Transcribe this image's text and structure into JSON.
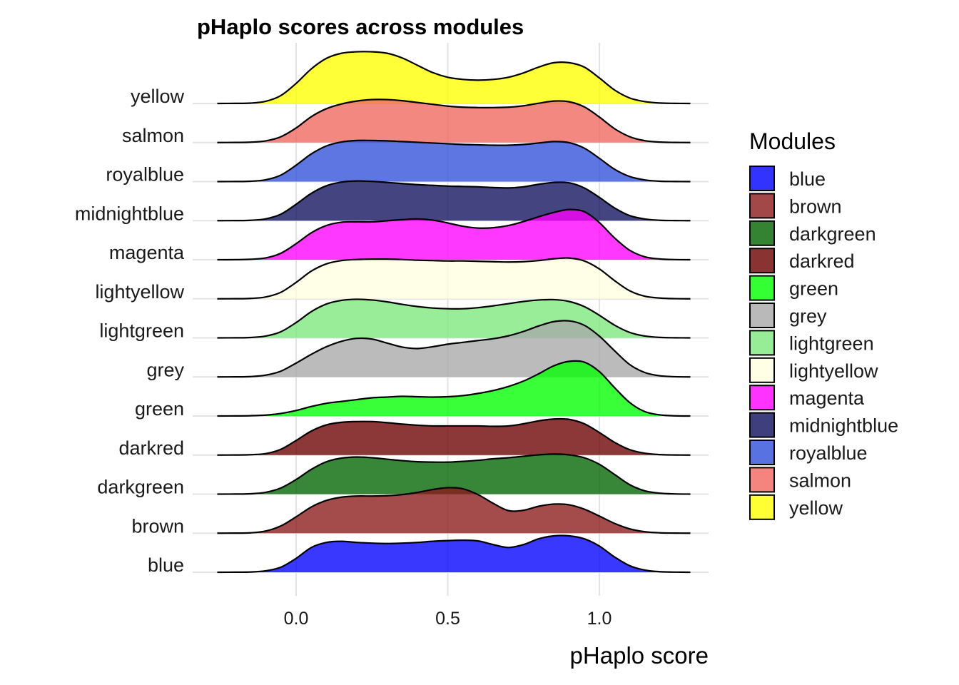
{
  "chart_data": {
    "type": "ridgeline",
    "title": "pHaplo scores across modules",
    "xlabel": "pHaplo score",
    "ylabel": "",
    "xlim": [
      -0.26,
      1.3
    ],
    "xticks": [
      0.0,
      0.5,
      1.0
    ],
    "xtick_labels": [
      "0.0",
      "0.5",
      "1.0"
    ],
    "grid": true,
    "legend": {
      "title": "Modules",
      "position": "right"
    },
    "categories": [
      "blue",
      "brown",
      "darkgreen",
      "darkred",
      "green",
      "grey",
      "lightgreen",
      "lightyellow",
      "magenta",
      "midnightblue",
      "royalblue",
      "salmon",
      "yellow"
    ],
    "x": [
      -0.26,
      -0.2,
      -0.15,
      -0.1,
      -0.05,
      0.0,
      0.05,
      0.1,
      0.15,
      0.2,
      0.25,
      0.3,
      0.35,
      0.4,
      0.45,
      0.5,
      0.55,
      0.6,
      0.65,
      0.7,
      0.75,
      0.8,
      0.85,
      0.9,
      0.95,
      1.0,
      1.05,
      1.1,
      1.15,
      1.2,
      1.25,
      1.3
    ],
    "series": [
      {
        "name": "blue",
        "color": "#0000FF",
        "values": [
          0,
          0.002,
          0.008,
          0.04,
          0.14,
          0.38,
          0.68,
          0.82,
          0.85,
          0.82,
          0.8,
          0.79,
          0.8,
          0.82,
          0.85,
          0.87,
          0.88,
          0.86,
          0.76,
          0.68,
          0.76,
          0.92,
          1.0,
          1.0,
          0.92,
          0.72,
          0.42,
          0.18,
          0.06,
          0.015,
          0.004,
          0
        ]
      },
      {
        "name": "brown",
        "color": "#8B1A1A",
        "values": [
          0,
          0.002,
          0.01,
          0.06,
          0.2,
          0.45,
          0.72,
          0.9,
          0.99,
          1.02,
          1.02,
          1.03,
          1.06,
          1.12,
          1.2,
          1.25,
          1.22,
          1.06,
          0.82,
          0.62,
          0.63,
          0.74,
          0.8,
          0.78,
          0.66,
          0.47,
          0.27,
          0.12,
          0.04,
          0.01,
          0.003,
          0
        ]
      },
      {
        "name": "darkgreen",
        "color": "#006400",
        "values": [
          0,
          0.002,
          0.01,
          0.05,
          0.17,
          0.4,
          0.68,
          0.89,
          0.99,
          1.02,
          1.0,
          0.96,
          0.92,
          0.89,
          0.88,
          0.88,
          0.9,
          0.93,
          0.97,
          1.0,
          1.04,
          1.08,
          1.1,
          1.08,
          1.0,
          0.82,
          0.54,
          0.26,
          0.09,
          0.025,
          0.006,
          0
        ]
      },
      {
        "name": "darkred",
        "color": "#6B0000",
        "values": [
          0,
          0.002,
          0.01,
          0.04,
          0.16,
          0.4,
          0.66,
          0.83,
          0.9,
          0.92,
          0.92,
          0.89,
          0.85,
          0.82,
          0.8,
          0.8,
          0.8,
          0.8,
          0.79,
          0.8,
          0.86,
          0.94,
          0.99,
          0.98,
          0.86,
          0.62,
          0.35,
          0.15,
          0.05,
          0.012,
          0.003,
          0
        ]
      },
      {
        "name": "green",
        "color": "#00FF00",
        "values": [
          0,
          0.002,
          0.008,
          0.025,
          0.07,
          0.15,
          0.26,
          0.35,
          0.4,
          0.45,
          0.5,
          0.52,
          0.54,
          0.53,
          0.52,
          0.53,
          0.56,
          0.62,
          0.7,
          0.81,
          0.96,
          1.16,
          1.38,
          1.5,
          1.48,
          1.22,
          0.78,
          0.37,
          0.12,
          0.03,
          0.005,
          0
        ]
      },
      {
        "name": "grey",
        "color": "#A8A8A8",
        "values": [
          0,
          0.002,
          0.01,
          0.05,
          0.16,
          0.38,
          0.62,
          0.83,
          0.98,
          1.06,
          1.04,
          0.93,
          0.82,
          0.78,
          0.83,
          0.9,
          0.95,
          1.0,
          1.05,
          1.13,
          1.25,
          1.4,
          1.52,
          1.54,
          1.42,
          1.12,
          0.72,
          0.34,
          0.12,
          0.03,
          0.006,
          0
        ]
      },
      {
        "name": "lightgreen",
        "color": "#7CE87C",
        "values": [
          0,
          0.002,
          0.01,
          0.05,
          0.17,
          0.42,
          0.72,
          0.93,
          1.03,
          1.06,
          1.04,
          0.99,
          0.92,
          0.86,
          0.82,
          0.8,
          0.8,
          0.83,
          0.88,
          0.94,
          1.0,
          1.04,
          1.05,
          1.0,
          0.86,
          0.62,
          0.35,
          0.15,
          0.05,
          0.012,
          0.003,
          0
        ]
      },
      {
        "name": "lightyellow",
        "color": "#FFFFE0",
        "values": [
          0,
          0.002,
          0.01,
          0.05,
          0.18,
          0.45,
          0.76,
          0.96,
          1.05,
          1.08,
          1.09,
          1.09,
          1.08,
          1.06,
          1.05,
          1.04,
          1.04,
          1.03,
          1.02,
          1.01,
          1.02,
          1.05,
          1.1,
          1.12,
          1.04,
          0.82,
          0.5,
          0.22,
          0.07,
          0.02,
          0.004,
          0
        ]
      },
      {
        "name": "magenta",
        "color": "#FF00FF",
        "values": [
          0,
          0.002,
          0.012,
          0.05,
          0.18,
          0.44,
          0.74,
          0.94,
          1.03,
          1.04,
          1.04,
          1.07,
          1.1,
          1.12,
          1.09,
          1.01,
          0.92,
          0.87,
          0.88,
          0.94,
          1.05,
          1.18,
          1.3,
          1.38,
          1.32,
          1.02,
          0.6,
          0.26,
          0.08,
          0.02,
          0.004,
          0
        ]
      },
      {
        "name": "midnightblue",
        "color": "#0F0F5E",
        "values": [
          0,
          0.002,
          0.01,
          0.05,
          0.18,
          0.45,
          0.75,
          0.96,
          1.06,
          1.09,
          1.08,
          1.05,
          1.02,
          0.99,
          0.97,
          0.95,
          0.94,
          0.93,
          0.91,
          0.9,
          0.93,
          1.0,
          1.05,
          1.04,
          0.9,
          0.64,
          0.35,
          0.14,
          0.045,
          0.01,
          0.003,
          0
        ]
      },
      {
        "name": "royalblue",
        "color": "#2F4FDA",
        "values": [
          0,
          0.002,
          0.01,
          0.05,
          0.18,
          0.45,
          0.76,
          0.98,
          1.09,
          1.13,
          1.13,
          1.12,
          1.1,
          1.08,
          1.06,
          1.04,
          1.02,
          1.01,
          1.0,
          1.0,
          1.02,
          1.06,
          1.1,
          1.07,
          0.92,
          0.64,
          0.34,
          0.14,
          0.045,
          0.01,
          0.003,
          0
        ]
      },
      {
        "name": "salmon",
        "color": "#F0665E",
        "values": [
          0,
          0.002,
          0.01,
          0.045,
          0.16,
          0.4,
          0.71,
          0.93,
          1.06,
          1.14,
          1.18,
          1.18,
          1.15,
          1.1,
          1.05,
          1.0,
          0.97,
          0.96,
          0.96,
          0.97,
          1.01,
          1.08,
          1.14,
          1.12,
          0.98,
          0.7,
          0.38,
          0.16,
          0.05,
          0.012,
          0.003,
          0
        ]
      },
      {
        "name": "yellow",
        "color": "#FFFF00",
        "values": [
          0,
          0.002,
          0.01,
          0.06,
          0.22,
          0.55,
          0.95,
          1.24,
          1.38,
          1.42,
          1.42,
          1.38,
          1.25,
          1.05,
          0.85,
          0.72,
          0.66,
          0.64,
          0.66,
          0.72,
          0.84,
          1.0,
          1.12,
          1.12,
          1.0,
          0.7,
          0.37,
          0.15,
          0.05,
          0.012,
          0.003,
          0
        ]
      }
    ]
  }
}
